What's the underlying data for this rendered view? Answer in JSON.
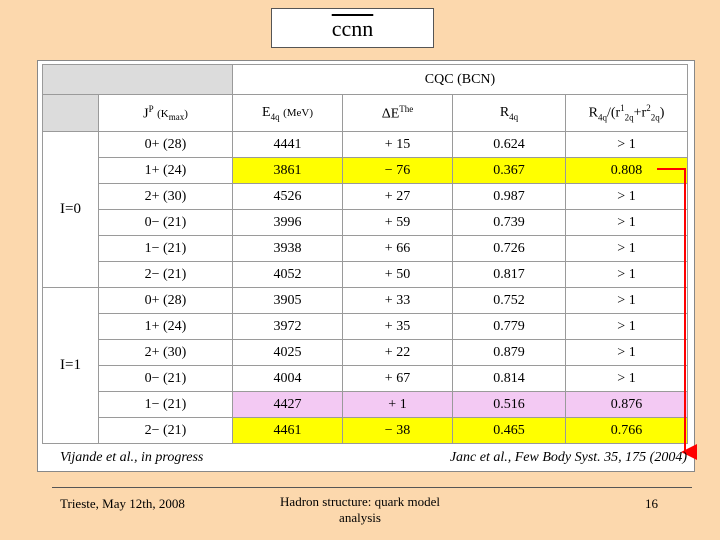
{
  "title": "ccnn",
  "table": {
    "super_header": "CQC (BCN)",
    "headers": {
      "col1": "JP (Kmax)",
      "col2": "E4q (MeV)",
      "col3": "ΔEThe",
      "col4": "R4q",
      "col5": "R4q/(r12q+r22q)"
    },
    "groups": [
      {
        "label": "I=0",
        "rows": [
          {
            "state": "0+ (28)",
            "e": "4441",
            "delta": "+ 15",
            "r": "0.624",
            "ratio": "> 1",
            "highlight": "none"
          },
          {
            "state": "1+ (24)",
            "e": "3861",
            "delta": "− 76",
            "r": "0.367",
            "ratio": "0.808",
            "highlight": "yellow"
          },
          {
            "state": "2+ (30)",
            "e": "4526",
            "delta": "+ 27",
            "r": "0.987",
            "ratio": "> 1",
            "highlight": "none"
          },
          {
            "state": "0− (21)",
            "e": "3996",
            "delta": "+ 59",
            "r": "0.739",
            "ratio": "> 1",
            "highlight": "none"
          },
          {
            "state": "1− (21)",
            "e": "3938",
            "delta": "+ 66",
            "r": "0.726",
            "ratio": "> 1",
            "highlight": "none"
          },
          {
            "state": "2− (21)",
            "e": "4052",
            "delta": "+ 50",
            "r": "0.817",
            "ratio": "> 1",
            "highlight": "none"
          }
        ]
      },
      {
        "label": "I=1",
        "rows": [
          {
            "state": "0+ (28)",
            "e": "3905",
            "delta": "+ 33",
            "r": "0.752",
            "ratio": "> 1",
            "highlight": "none"
          },
          {
            "state": "1+ (24)",
            "e": "3972",
            "delta": "+ 35",
            "r": "0.779",
            "ratio": "> 1",
            "highlight": "none"
          },
          {
            "state": "2+ (30)",
            "e": "4025",
            "delta": "+ 22",
            "r": "0.879",
            "ratio": "> 1",
            "highlight": "none"
          },
          {
            "state": "0− (21)",
            "e": "4004",
            "delta": "+ 67",
            "r": "0.814",
            "ratio": "> 1",
            "highlight": "none"
          },
          {
            "state": "1− (21)",
            "e": "4427",
            "delta": "+ 1",
            "r": "0.516",
            "ratio": "0.876",
            "highlight": "pink"
          },
          {
            "state": "2− (21)",
            "e": "4461",
            "delta": "− 38",
            "r": "0.465",
            "ratio": "0.766",
            "highlight": "yellow"
          }
        ]
      }
    ]
  },
  "citation_left": "Vijande et al., in progress",
  "citation_right": "Janc et al., Few Body Syst. 35, 175 (2004)",
  "footer": {
    "left": "Trieste, May 12th, 2008",
    "middle": "Hadron structure: quark model analysis",
    "page": "16"
  },
  "colors": {
    "background": "#fcd8ad",
    "highlight_yellow": "#ffff00",
    "highlight_pink": "#f3c9f3",
    "arrow": "#ff0000"
  }
}
